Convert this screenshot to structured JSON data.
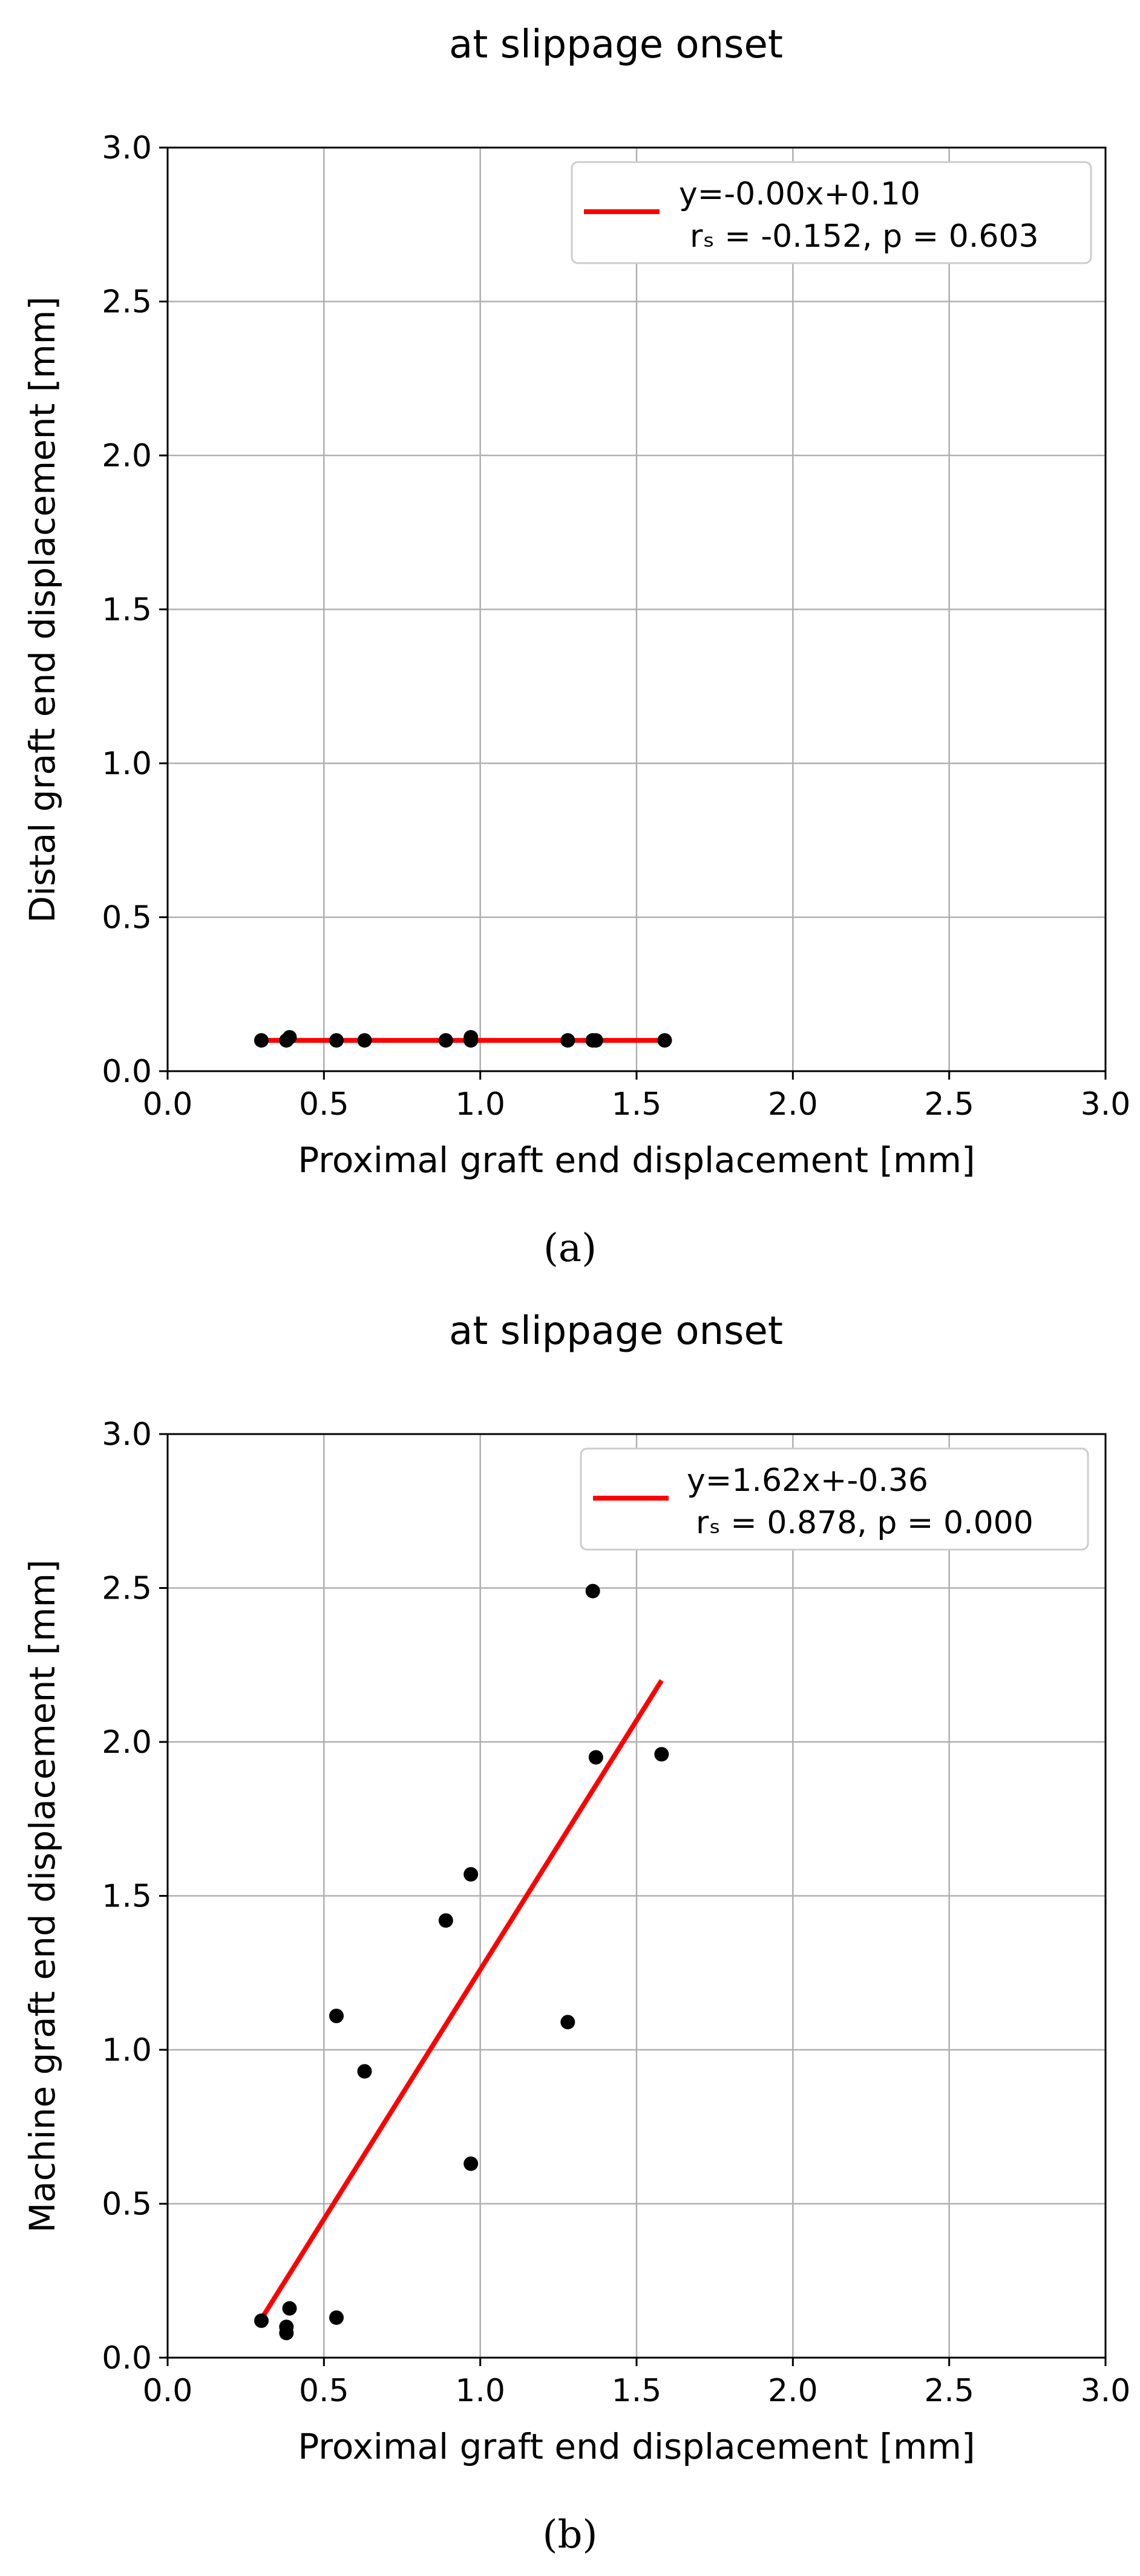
{
  "chart_data": [
    {
      "type": "scatter",
      "panel_label": "(a)",
      "title": "at slippage onset",
      "xlabel": "Proximal graft end displacement [mm]",
      "ylabel": "Distal graft end displacement [mm]",
      "xlim": [
        0,
        3
      ],
      "ylim": [
        0,
        3
      ],
      "xticks": [
        "0.0",
        "0.5",
        "1.0",
        "1.5",
        "2.0",
        "2.5",
        "3.0"
      ],
      "yticks": [
        "0.0",
        "0.5",
        "1.0",
        "1.5",
        "2.0",
        "2.5",
        "3.0"
      ],
      "grid": true,
      "legend": {
        "placement": "top-right",
        "line1": "y=-0.00x+0.10",
        "line2": "rₛ = -0.152, p = 0.603"
      },
      "fit": {
        "slope": -0.0,
        "intercept": 0.1,
        "x_range": [
          0.3,
          1.59
        ],
        "color": "#ff0000"
      },
      "points": {
        "x": [
          0.3,
          0.38,
          0.39,
          0.54,
          0.63,
          0.89,
          0.97,
          0.97,
          1.28,
          1.36,
          1.37,
          1.59
        ],
        "y": [
          0.1,
          0.1,
          0.11,
          0.1,
          0.1,
          0.1,
          0.1,
          0.11,
          0.1,
          0.1,
          0.1,
          0.1
        ],
        "color": "#000000"
      }
    },
    {
      "type": "scatter",
      "panel_label": "(b)",
      "title": "at slippage onset",
      "xlabel": "Proximal graft end displacement [mm]",
      "ylabel": "Machine graft end displacement [mm]",
      "xlim": [
        0,
        3
      ],
      "ylim": [
        0,
        3
      ],
      "xticks": [
        "0.0",
        "0.5",
        "1.0",
        "1.5",
        "2.0",
        "2.5",
        "3.0"
      ],
      "yticks": [
        "0.0",
        "0.5",
        "1.0",
        "1.5",
        "2.0",
        "2.5",
        "3.0"
      ],
      "grid": true,
      "legend": {
        "placement": "top-right",
        "line1": "y=1.62x+-0.36",
        "line2": "rₛ = 0.878, p = 0.000"
      },
      "fit": {
        "slope": 1.62,
        "intercept": -0.36,
        "x_range": [
          0.3,
          1.58
        ],
        "color": "#ff0000"
      },
      "points": {
        "x": [
          0.3,
          0.38,
          0.38,
          0.39,
          0.54,
          0.54,
          0.63,
          0.89,
          0.97,
          0.97,
          1.28,
          1.36,
          1.37,
          1.58
        ],
        "y": [
          0.12,
          0.08,
          0.1,
          0.16,
          0.13,
          1.11,
          0.93,
          1.42,
          1.57,
          0.63,
          1.09,
          2.49,
          1.95,
          1.96
        ],
        "color": "#000000"
      }
    }
  ]
}
